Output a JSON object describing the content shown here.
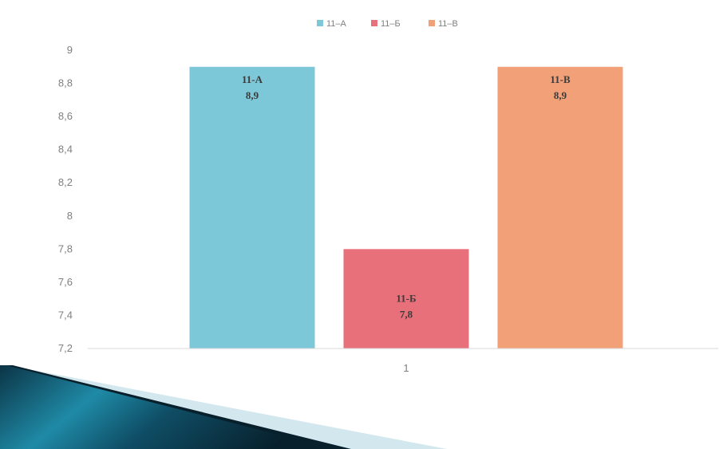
{
  "chart_data": {
    "type": "bar",
    "categories": [
      "1"
    ],
    "series": [
      {
        "name": "11–А",
        "values": [
          8.9
        ],
        "color": "#7cc7d8",
        "label_name": "11-А",
        "label_value": "8,9"
      },
      {
        "name": "11–Б",
        "values": [
          7.8
        ],
        "color": "#e8707a",
        "label_name": "11-Б",
        "label_value": "7,8"
      },
      {
        "name": "11–В",
        "values": [
          8.9
        ],
        "color": "#f2a077",
        "label_name": "11-В",
        "label_value": "8,9"
      }
    ],
    "ylim": [
      7.2,
      9
    ],
    "yticks": [
      7.2,
      7.4,
      7.6,
      7.8,
      8,
      8.2,
      8.4,
      8.6,
      8.8,
      9
    ],
    "ytick_labels": [
      "7,2",
      "7,4",
      "7,6",
      "7,8",
      "8",
      "8,2",
      "8,4",
      "8,6",
      "8,8",
      "9"
    ],
    "grid": false,
    "legend_position": "top-center",
    "xlabel": "",
    "ylabel": "",
    "title": ""
  },
  "colors": {
    "axis": "#d9d9d9",
    "decor_dark": "#0b2f3f",
    "decor_teal": "#1c7f9a",
    "decor_light": "#cfe4ea"
  }
}
